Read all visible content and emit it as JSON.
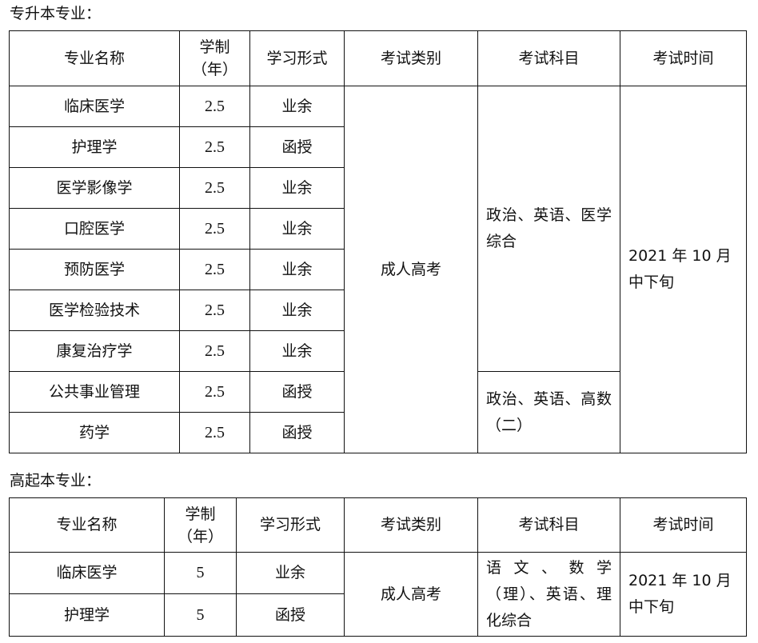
{
  "section1": {
    "title": "专升本专业：",
    "headers": [
      "专业名称",
      "学制（年）",
      "学习形式",
      "考试类别",
      "考试科目",
      "考试时间"
    ],
    "rows": [
      {
        "major": "临床医学",
        "years": "2.5",
        "mode": "业余"
      },
      {
        "major": "护理学",
        "years": "2.5",
        "mode": "函授"
      },
      {
        "major": "医学影像学",
        "years": "2.5",
        "mode": "业余"
      },
      {
        "major": "口腔医学",
        "years": "2.5",
        "mode": "业余"
      },
      {
        "major": "预防医学",
        "years": "2.5",
        "mode": "业余"
      },
      {
        "major": "医学检验技术",
        "years": "2.5",
        "mode": "业余"
      },
      {
        "major": "康复治疗学",
        "years": "2.5",
        "mode": "业余"
      },
      {
        "major": "公共事业管理",
        "years": "2.5",
        "mode": "函授"
      },
      {
        "major": "药学",
        "years": "2.5",
        "mode": "函授"
      }
    ],
    "exam_type": "成人高考",
    "subjects_a": "政治、英语、医学综合",
    "subjects_b": "政治、英语、高数（二）",
    "exam_time": "2021 年 10 月中下旬"
  },
  "section2": {
    "title": "高起本专业：",
    "headers": [
      "专业名称",
      "学制（年）",
      "学习形式",
      "考试类别",
      "考试科目",
      "考试时间"
    ],
    "rows": [
      {
        "major": "临床医学",
        "years": "5",
        "mode": "业余"
      },
      {
        "major": "护理学",
        "years": "5",
        "mode": "函授"
      }
    ],
    "exam_type": "成人高考",
    "subjects": "语文、数学（理）、英语、理化综合",
    "exam_time": "2021 年 10 月中下旬"
  }
}
